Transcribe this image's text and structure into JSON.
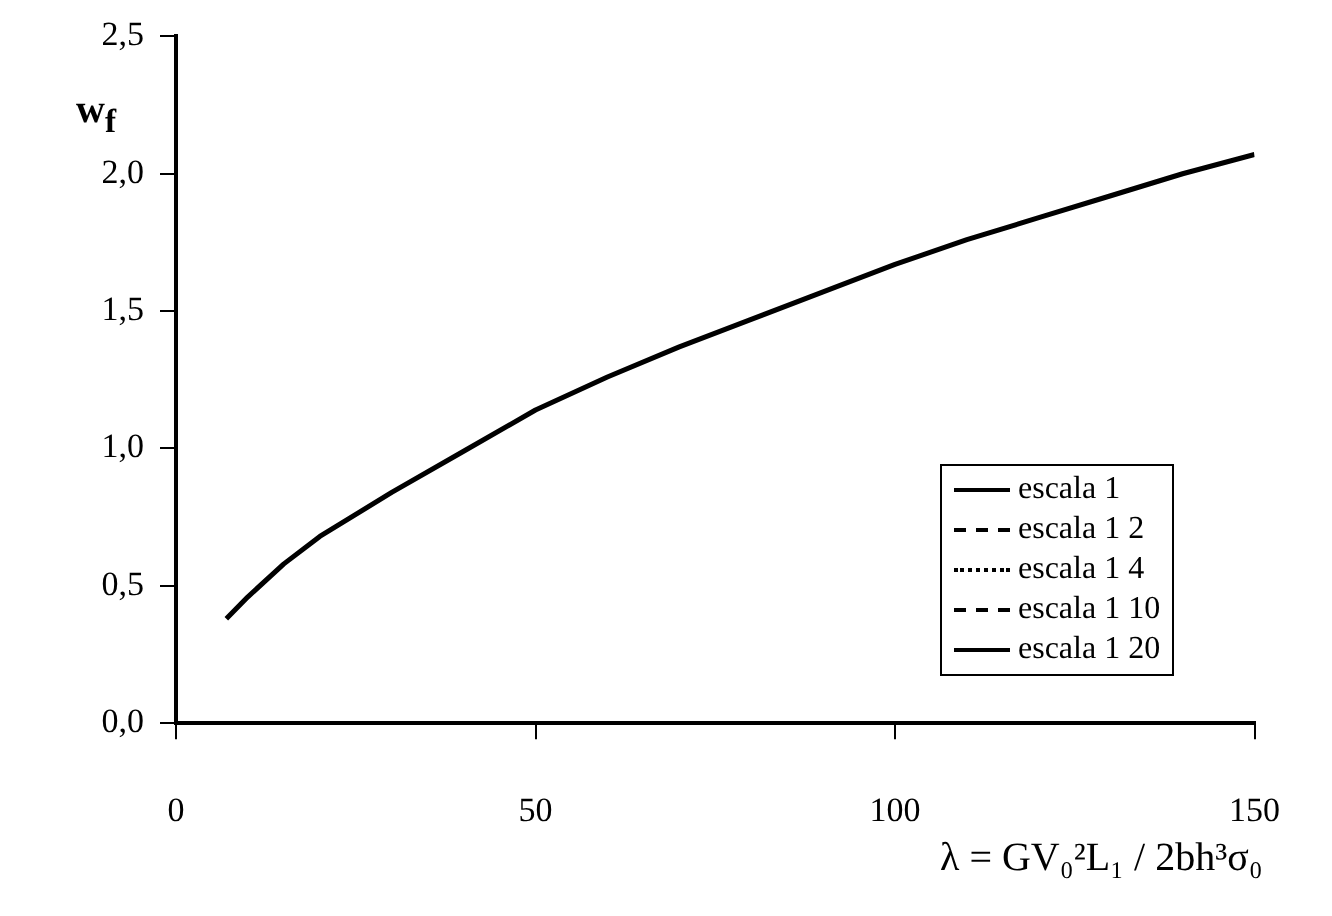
{
  "chart_data": {
    "type": "line",
    "ylabel": "w$_{f}$",
    "xlabel": "λ = GV₀²L₁ / 2bh³σ₀",
    "x": [
      7,
      10,
      15,
      20,
      30,
      40,
      50,
      60,
      70,
      80,
      90,
      100,
      110,
      120,
      130,
      140,
      150
    ],
    "series": [
      {
        "name": "escala 1",
        "color": "#000000",
        "line_style": "solid",
        "values": [
          0.38,
          0.46,
          0.58,
          0.68,
          0.84,
          0.99,
          1.14,
          1.26,
          1.37,
          1.47,
          1.57,
          1.67,
          1.76,
          1.84,
          1.92,
          2.0,
          2.07
        ]
      },
      {
        "name": "escala 1 2",
        "color": "#000000",
        "line_style": "dashed",
        "values": [
          null,
          null,
          null,
          null,
          null,
          null,
          null,
          null,
          null,
          null,
          null,
          null,
          null,
          null,
          null,
          null,
          null
        ]
      },
      {
        "name": "escala 1 4",
        "color": "#000000",
        "line_style": "dotted",
        "values": [
          null,
          null,
          null,
          null,
          null,
          null,
          null,
          null,
          null,
          null,
          null,
          null,
          null,
          null,
          null,
          null,
          null
        ]
      },
      {
        "name": "escala 1 10",
        "color": "#000000",
        "line_style": "dashed",
        "values": [
          null,
          null,
          null,
          null,
          null,
          null,
          null,
          null,
          null,
          null,
          null,
          null,
          null,
          null,
          null,
          null,
          null
        ]
      },
      {
        "name": "escala 1 20",
        "color": "#000000",
        "line_style": "solid",
        "values": [
          null,
          null,
          null,
          null,
          null,
          null,
          null,
          null,
          null,
          null,
          null,
          null,
          null,
          null,
          null,
          null,
          null
        ]
      }
    ],
    "xlim": [
      0,
      150
    ],
    "xticks": [
      0,
      50,
      100,
      150
    ],
    "ylim": [
      0,
      2.5
    ],
    "yticks": [
      {
        "value": 0,
        "label": "0,0"
      },
      {
        "value": 0.5,
        "label": "0,5"
      },
      {
        "value": 1,
        "label": "1,0"
      },
      {
        "value": 1.5,
        "label": "1,5"
      },
      {
        "value": 2,
        "label": "2,0"
      },
      {
        "value": 2.5,
        "label": "2,5"
      }
    ],
    "grid": false,
    "legend": "bottom right",
    "marker": "none"
  }
}
